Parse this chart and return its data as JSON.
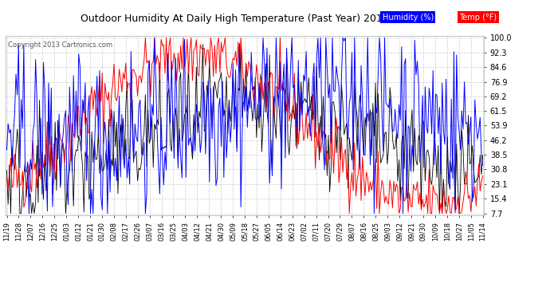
{
  "title": "Outdoor Humidity At Daily High Temperature (Past Year) 20131119",
  "copyright": "Copyright 2013 Cartronics.com",
  "legend_humidity_label": "Humidity (%)",
  "legend_temp_label": "Temp (°F)",
  "humidity_color": "#0000ff",
  "temp_color": "#ff0000",
  "black_color": "#000000",
  "background_color": "#ffffff",
  "grid_color": "#cccccc",
  "yticks": [
    7.7,
    15.4,
    23.1,
    30.8,
    38.5,
    46.2,
    53.9,
    61.5,
    69.2,
    76.9,
    84.6,
    92.3,
    100.0
  ],
  "xtick_labels": [
    "11/19",
    "11/28",
    "12/07",
    "12/16",
    "12/25",
    "01/03",
    "01/12",
    "01/21",
    "01/30",
    "02/08",
    "02/17",
    "02/26",
    "03/07",
    "03/16",
    "03/25",
    "04/03",
    "04/12",
    "04/21",
    "04/30",
    "05/09",
    "05/18",
    "05/27",
    "06/05",
    "06/14",
    "06/23",
    "07/02",
    "07/11",
    "07/20",
    "07/29",
    "08/07",
    "08/16",
    "08/25",
    "09/03",
    "09/12",
    "09/21",
    "09/30",
    "10/09",
    "10/18",
    "10/27",
    "11/05",
    "11/14"
  ],
  "n_days": 365,
  "ymin": 7.7,
  "ymax": 100.0
}
